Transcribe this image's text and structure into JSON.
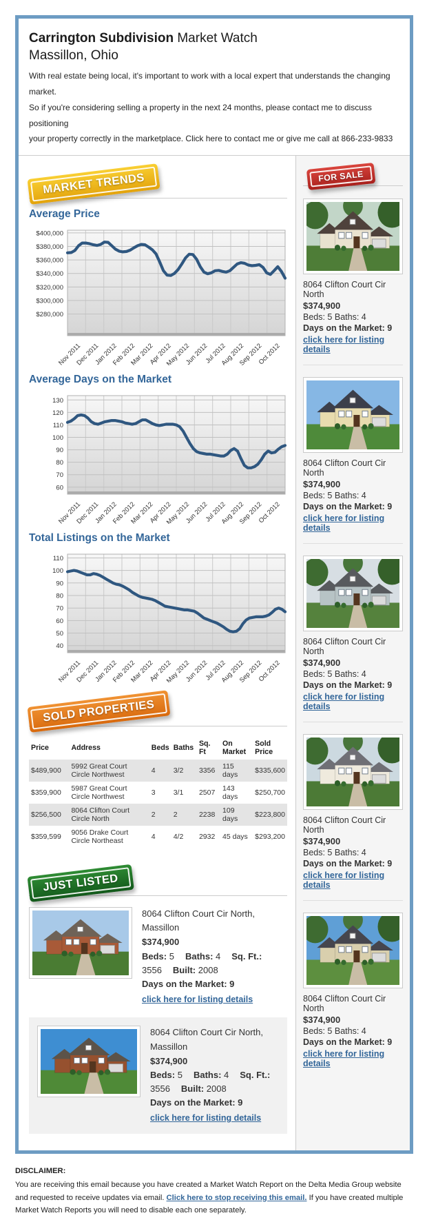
{
  "header": {
    "title_bold": "Carrington Subdivision",
    "title_rest": "Market Watch",
    "subtitle": "Massillon, Ohio",
    "intro_line1": "With real estate being local, it's important to work with a local expert that understands the changing market.",
    "intro_line2": "So if you're considering selling a property in the next 24 months, please contact me to discuss positioning",
    "intro_line3": "your property correctly in the marketplace. Click here to contact me or give me call at 866-233-9833"
  },
  "badges": {
    "market_trends": "MARKET TRENDS",
    "for_sale": "FOR SALE",
    "sold_properties": "SOLD PROPERTIES",
    "just_listed": "JUST LISTED"
  },
  "sections": {
    "avg_price": "Average Price",
    "avg_days": "Average Days on the Market",
    "total_listings": "Total Listings on the Market"
  },
  "colors": {
    "frame_blue": "#6d9cc3",
    "heading_blue": "#336699",
    "chart_line": "#2f5780",
    "badge_gold": "#e8ae14",
    "badge_red": "#bb2a24",
    "badge_orange": "#e07b1a",
    "badge_green": "#1e7022"
  },
  "chart_data": [
    {
      "type": "line",
      "title": "Average Price",
      "x_labels": [
        "Nov 2011",
        "Dec 2011",
        "Jan 2012",
        "Feb 2012",
        "Mar 2012",
        "Apr 2012",
        "May 2012",
        "Jun 2012",
        "Jul 2012",
        "Aug 2012",
        "Sep 2012",
        "Oct 2012"
      ],
      "yticks": [
        400000,
        380000,
        360000,
        340000,
        320000,
        300000,
        280000
      ],
      "ytick_labels": [
        "$400,000",
        "$380,000",
        "$360,000",
        "$340,000",
        "$320,000",
        "$300,000",
        "$280,000"
      ],
      "ylim": [
        251000,
        404000
      ],
      "line_color": "#2f5780",
      "grid": true,
      "legend": "none",
      "values": [
        370500,
        371000,
        374000,
        381000,
        385000,
        385000,
        384000,
        382500,
        381500,
        383000,
        386500,
        386000,
        381000,
        376000,
        373000,
        372000,
        372500,
        374500,
        378000,
        381000,
        383000,
        382500,
        379000,
        375000,
        369000,
        357000,
        344000,
        337500,
        337000,
        340000,
        346000,
        354000,
        363000,
        368500,
        368000,
        361000,
        350000,
        342000,
        339500,
        341000,
        344000,
        344500,
        343000,
        342000,
        344000,
        349000,
        354000,
        356000,
        355000,
        352500,
        351500,
        352000,
        353000,
        349000,
        341000,
        338500,
        344000,
        350000,
        343000,
        333000
      ]
    },
    {
      "type": "line",
      "title": "Average Days on the Market",
      "x_labels": [
        "Nov 2011",
        "Dec 2011",
        "Jan 2012",
        "Feb 2012",
        "Mar 2012",
        "Apr 2012",
        "May 2012",
        "Jun 2012",
        "Jul 2012",
        "Aug 2012",
        "Sep 2012",
        "Oct 2012"
      ],
      "yticks": [
        130,
        120,
        110,
        100,
        90,
        80,
        70,
        60
      ],
      "ytick_labels": [
        "130",
        "120",
        "110",
        "100",
        "90",
        "80",
        "70",
        "60"
      ],
      "ylim": [
        56,
        133.5
      ],
      "line_color": "#2f5780",
      "grid": true,
      "legend": "none",
      "values": [
        112,
        113,
        115,
        117.5,
        118,
        117.5,
        115.5,
        112.5,
        111,
        110.5,
        111.5,
        112.5,
        113,
        113.5,
        113.5,
        113,
        112.5,
        111.5,
        111,
        110.5,
        111,
        112.5,
        114,
        114,
        112.5,
        111,
        110,
        109.5,
        110,
        110.5,
        110.5,
        110.5,
        110,
        108.5,
        105,
        100,
        95,
        91,
        88.5,
        87.5,
        87,
        86.5,
        86.5,
        86,
        85.5,
        85,
        85,
        86.5,
        89.5,
        91,
        89,
        83,
        77.5,
        75.5,
        75.5,
        76.5,
        78.5,
        82,
        86.5,
        89,
        87.5,
        88,
        90.5,
        92.5,
        93.5
      ]
    },
    {
      "type": "line",
      "title": "Total Listings on the Market",
      "x_labels": [
        "Nov 2011",
        "Dec 2011",
        "Jan 2012",
        "Feb 2012",
        "Mar 2012",
        "Apr 2012",
        "May 2012",
        "Jun 2012",
        "Jul 2012",
        "Aug 2012",
        "Sep 2012",
        "Oct 2012"
      ],
      "yticks": [
        110,
        100,
        90,
        80,
        70,
        60,
        50,
        40
      ],
      "ytick_labels": [
        "110",
        "100",
        "90",
        "80",
        "70",
        "60",
        "50",
        "40"
      ],
      "ylim": [
        36,
        113
      ],
      "line_color": "#2f5780",
      "grid": true,
      "legend": "none",
      "values": [
        99,
        99.5,
        100,
        99.5,
        98.5,
        97.5,
        96.5,
        96.5,
        97.5,
        97,
        96,
        94.5,
        93,
        91.5,
        90,
        89,
        88.5,
        87.5,
        86,
        84.5,
        82.5,
        81,
        79.5,
        78.5,
        78,
        77.5,
        77,
        76,
        74.5,
        73,
        71.5,
        71,
        70.5,
        70,
        69.5,
        69,
        68.5,
        68.5,
        68,
        67.5,
        66,
        64,
        62,
        61,
        60,
        59,
        58,
        56.5,
        55,
        53,
        51.5,
        51,
        51.5,
        53.5,
        57.5,
        60.5,
        62,
        62.5,
        63,
        63,
        63,
        63.5,
        64.5,
        66.5,
        69,
        70,
        69,
        67
      ]
    }
  ],
  "for_sale": {
    "listings": [
      {
        "address": "8064 Clifton Court Cir North",
        "price": "$374,900",
        "beds_baths": "Beds: 5 Baths: 4",
        "days": "Days on the Market: 9",
        "link": "click here for listing details",
        "photo": {
          "sky": "#c2d6c8",
          "grass": "#4e7d37",
          "body": "#e9e2cf",
          "roof": "#4f423c",
          "trees": true
        }
      },
      {
        "address": "8064 Clifton Court Cir North",
        "price": "$374,900",
        "beds_baths": "Beds: 5 Baths: 4",
        "days": "Days on the Market: 9",
        "link": "click here for listing details",
        "photo": {
          "sky": "#86b7e4",
          "grass": "#4e8a3a",
          "body": "#e8dcae",
          "roof": "#3c3f4a",
          "trees": false
        }
      },
      {
        "address": "8064 Clifton Court Cir North",
        "price": "$374,900",
        "beds_baths": "Beds: 5 Baths: 4",
        "days": "Days on the Market: 9",
        "link": "click here for listing details",
        "photo": {
          "sky": "#d7dee3",
          "grass": "#55823d",
          "body": "#b7c3c5",
          "roof": "#585a5e",
          "trees": true
        }
      },
      {
        "address": "8064 Clifton Court Cir North",
        "price": "$374,900",
        "beds_baths": "Beds: 5 Baths: 4",
        "days": "Days on the Market: 9",
        "link": "click here for listing details",
        "photo": {
          "sky": "#ccd9e0",
          "grass": "#4c7a36",
          "body": "#efeadd",
          "roof": "#6f6f75",
          "trees": true
        }
      },
      {
        "address": "8064 Clifton Court Cir North",
        "price": "$374,900",
        "beds_baths": "Beds: 5 Baths: 4",
        "days": "Days on the Market: 9",
        "link": "click here for listing details",
        "photo": {
          "sky": "#5f9fd6",
          "grass": "#5d8f3f",
          "body": "#d9cfad",
          "roof": "#46464e",
          "trees": true
        }
      }
    ]
  },
  "sold": {
    "headers": [
      "Price",
      "Address",
      "Beds",
      "Baths",
      "Sq. Ft",
      "On Market",
      "Sold Price"
    ],
    "rows": [
      [
        "$489,900",
        "5992 Great Court Circle Northwest",
        "4",
        "3/2",
        "3356",
        "115 days",
        "$335,600"
      ],
      [
        "$359,900",
        "5987 Great Court Circle Northwest",
        "3",
        "3/1",
        "2507",
        "143 days",
        "$250,700"
      ],
      [
        "$256,500",
        "8064 Clifton Court Circle North",
        "2",
        "2",
        "2238",
        "109 days",
        "$223,800"
      ],
      [
        "$359,599",
        "9056 Drake Court Circle Northeast",
        "4",
        "4/2",
        "2932",
        "45 days",
        "$293,200"
      ]
    ]
  },
  "just_listed": {
    "listings": [
      {
        "address": "8064 Clifton Court Cir North, Massillon",
        "price": "$374,900",
        "specs": [
          [
            "Beds:",
            "5"
          ],
          [
            "Baths:",
            "4"
          ],
          [
            "Sq. Ft.:",
            "3556"
          ],
          [
            "Built:",
            "2008"
          ]
        ],
        "days": "Days on the Market: 9",
        "link": "click here for listing details",
        "photo": {
          "sky": "#a8c9e8",
          "grass": "#4a7c33",
          "body": "#a85a38",
          "roof": "#6e6257",
          "trees": false
        }
      },
      {
        "address": "8064 Clifton Court Cir North, Massillon",
        "price": "$374,900",
        "specs": [
          [
            "Beds:",
            "5"
          ],
          [
            "Baths:",
            "4"
          ],
          [
            "Sq. Ft.:",
            "3556"
          ],
          [
            "Built:",
            "2008"
          ]
        ],
        "days": "Days on the Market: 9",
        "link": "click here for listing details",
        "photo": {
          "sky": "#3e8ed2",
          "grass": "#4f8a37",
          "body": "#96512f",
          "roof": "#5c5349",
          "trees": false
        }
      }
    ]
  },
  "disclaimer": {
    "heading": "DISCLAIMER:",
    "before": "You are receiving this email because you have created a Market Watch Report on the Delta Media Group website and requested to receive updates via email. ",
    "link": "Click here to stop receiving this email.",
    "after": " If you have created multiple Market Watch Reports you will need to disable each one separately."
  }
}
